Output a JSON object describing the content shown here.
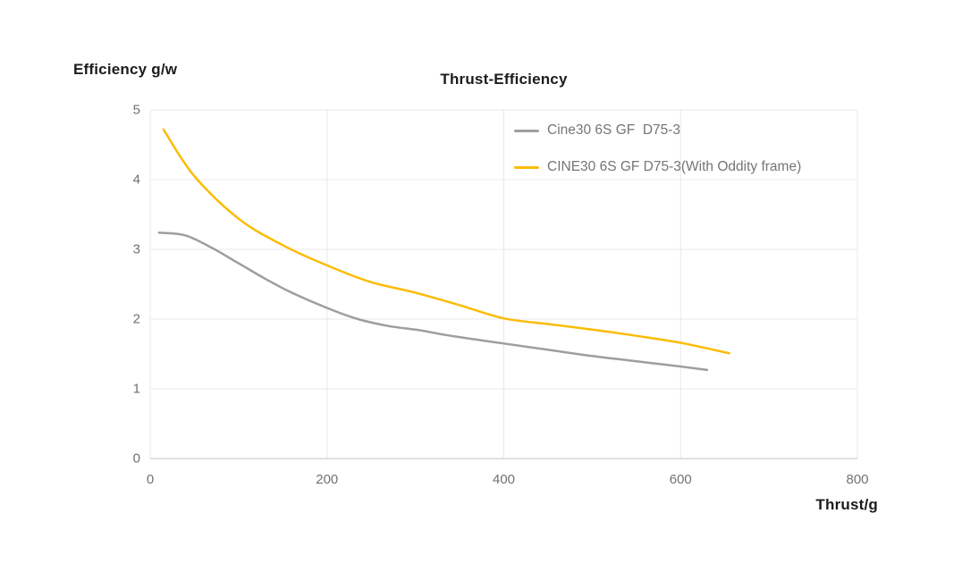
{
  "chart_data": {
    "type": "line",
    "title": "Thrust-Efficiency",
    "ylabel": "Efficiency g/w",
    "xlabel": "Thrust/g",
    "xlim": [
      0,
      800
    ],
    "ylim": [
      0,
      5
    ],
    "x_ticks": [
      "0",
      "200",
      "400",
      "600",
      "800"
    ],
    "x_tick_values": [
      0,
      200,
      400,
      600,
      800
    ],
    "y_ticks": [
      "0",
      "1",
      "2",
      "3",
      "4",
      "5"
    ],
    "y_tick_values": [
      0,
      1,
      2,
      3,
      4,
      5
    ],
    "grid": true,
    "legend_position": "top-right-inside",
    "smooth_lines": true,
    "colors": {
      "grid_line": "#e8e8e8",
      "axis_line": "#d6d6d6",
      "tick_text": "#717171",
      "legend_text": "#757575",
      "title_text": "#1c1c1c"
    },
    "series": [
      {
        "name": "Cine30 6S GF  D75-3",
        "color": "#9e9e9e",
        "points": [
          [
            10,
            3.24
          ],
          [
            40,
            3.2
          ],
          [
            70,
            3.02
          ],
          [
            100,
            2.8
          ],
          [
            130,
            2.58
          ],
          [
            160,
            2.38
          ],
          [
            200,
            2.16
          ],
          [
            235,
            2.0
          ],
          [
            270,
            1.9
          ],
          [
            305,
            1.84
          ],
          [
            340,
            1.76
          ],
          [
            400,
            1.65
          ],
          [
            450,
            1.56
          ],
          [
            500,
            1.47
          ],
          [
            540,
            1.41
          ],
          [
            600,
            1.32
          ],
          [
            630,
            1.27
          ]
        ]
      },
      {
        "name": "CINE30 6S GF D75-3(With Oddity frame)",
        "color": "#fbbc04",
        "points": [
          [
            15,
            4.72
          ],
          [
            50,
            4.05
          ],
          [
            100,
            3.44
          ],
          [
            150,
            3.06
          ],
          [
            200,
            2.77
          ],
          [
            250,
            2.53
          ],
          [
            300,
            2.38
          ],
          [
            350,
            2.2
          ],
          [
            400,
            2.01
          ],
          [
            450,
            1.93
          ],
          [
            500,
            1.85
          ],
          [
            550,
            1.76
          ],
          [
            600,
            1.66
          ],
          [
            655,
            1.51
          ]
        ]
      }
    ]
  }
}
